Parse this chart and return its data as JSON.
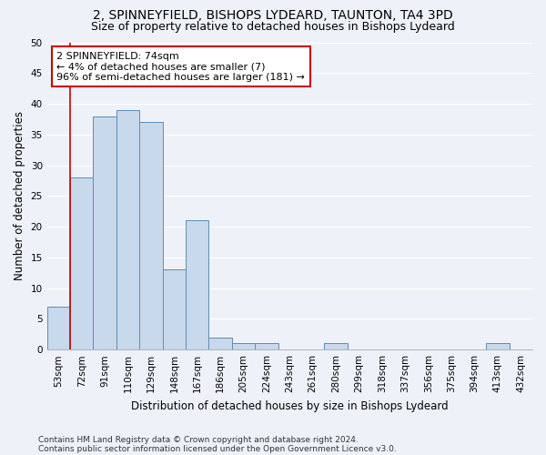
{
  "title1": "2, SPINNEYFIELD, BISHOPS LYDEARD, TAUNTON, TA4 3PD",
  "title2": "Size of property relative to detached houses in Bishops Lydeard",
  "xlabel": "Distribution of detached houses by size in Bishops Lydeard",
  "ylabel": "Number of detached properties",
  "categories": [
    "53sqm",
    "72sqm",
    "91sqm",
    "110sqm",
    "129sqm",
    "148sqm",
    "167sqm",
    "186sqm",
    "205sqm",
    "224sqm",
    "243sqm",
    "261sqm",
    "280sqm",
    "299sqm",
    "318sqm",
    "337sqm",
    "356sqm",
    "375sqm",
    "394sqm",
    "413sqm",
    "432sqm"
  ],
  "values": [
    7,
    28,
    38,
    39,
    37,
    13,
    21,
    2,
    1,
    1,
    0,
    0,
    1,
    0,
    0,
    0,
    0,
    0,
    0,
    1,
    0
  ],
  "bar_color": "#c8d9ec",
  "bar_edge_color": "#5b8db8",
  "red_line_color": "#cc0000",
  "annotation_title": "2 SPINNEYFIELD: 74sqm",
  "annotation_line1": "← 4% of detached houses are smaller (7)",
  "annotation_line2": "96% of semi-detached houses are larger (181) →",
  "annotation_box_color": "#ffffff",
  "annotation_box_edge": "#cc0000",
  "ylim": [
    0,
    50
  ],
  "yticks": [
    0,
    5,
    10,
    15,
    20,
    25,
    30,
    35,
    40,
    45,
    50
  ],
  "footnote1": "Contains HM Land Registry data © Crown copyright and database right 2024.",
  "footnote2": "Contains public sector information licensed under the Open Government Licence v3.0.",
  "bg_color": "#eef2f8",
  "grid_color": "#ffffff",
  "title1_fontsize": 10,
  "title2_fontsize": 9,
  "axis_label_fontsize": 8.5,
  "tick_fontsize": 7.5,
  "annotation_fontsize": 8,
  "footnote_fontsize": 6.5
}
